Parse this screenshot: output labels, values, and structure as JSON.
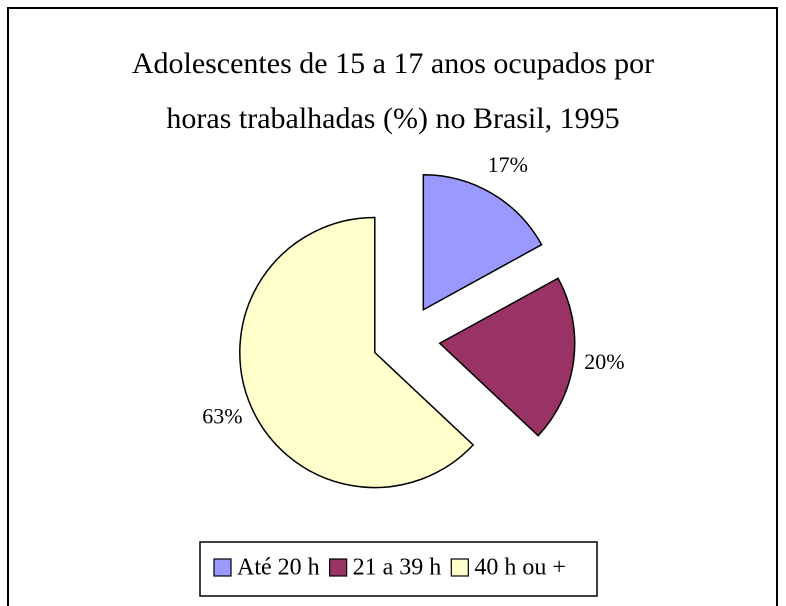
{
  "chart_data": {
    "type": "pie",
    "title": [
      "Adolescentes de 15 a 17 anos ocupados por",
      "horas trabalhadas (%) no Brasil, 1995"
    ],
    "categories": [
      "Até 20 h",
      "21 a 39 h",
      "40 h ou +"
    ],
    "values": [
      17,
      20,
      63
    ],
    "value_labels": [
      "17%",
      "20%",
      "63%"
    ],
    "colors": [
      "#9999ff",
      "#993366",
      "#ffffcc"
    ],
    "exploded": true,
    "legend": "bottom"
  }
}
